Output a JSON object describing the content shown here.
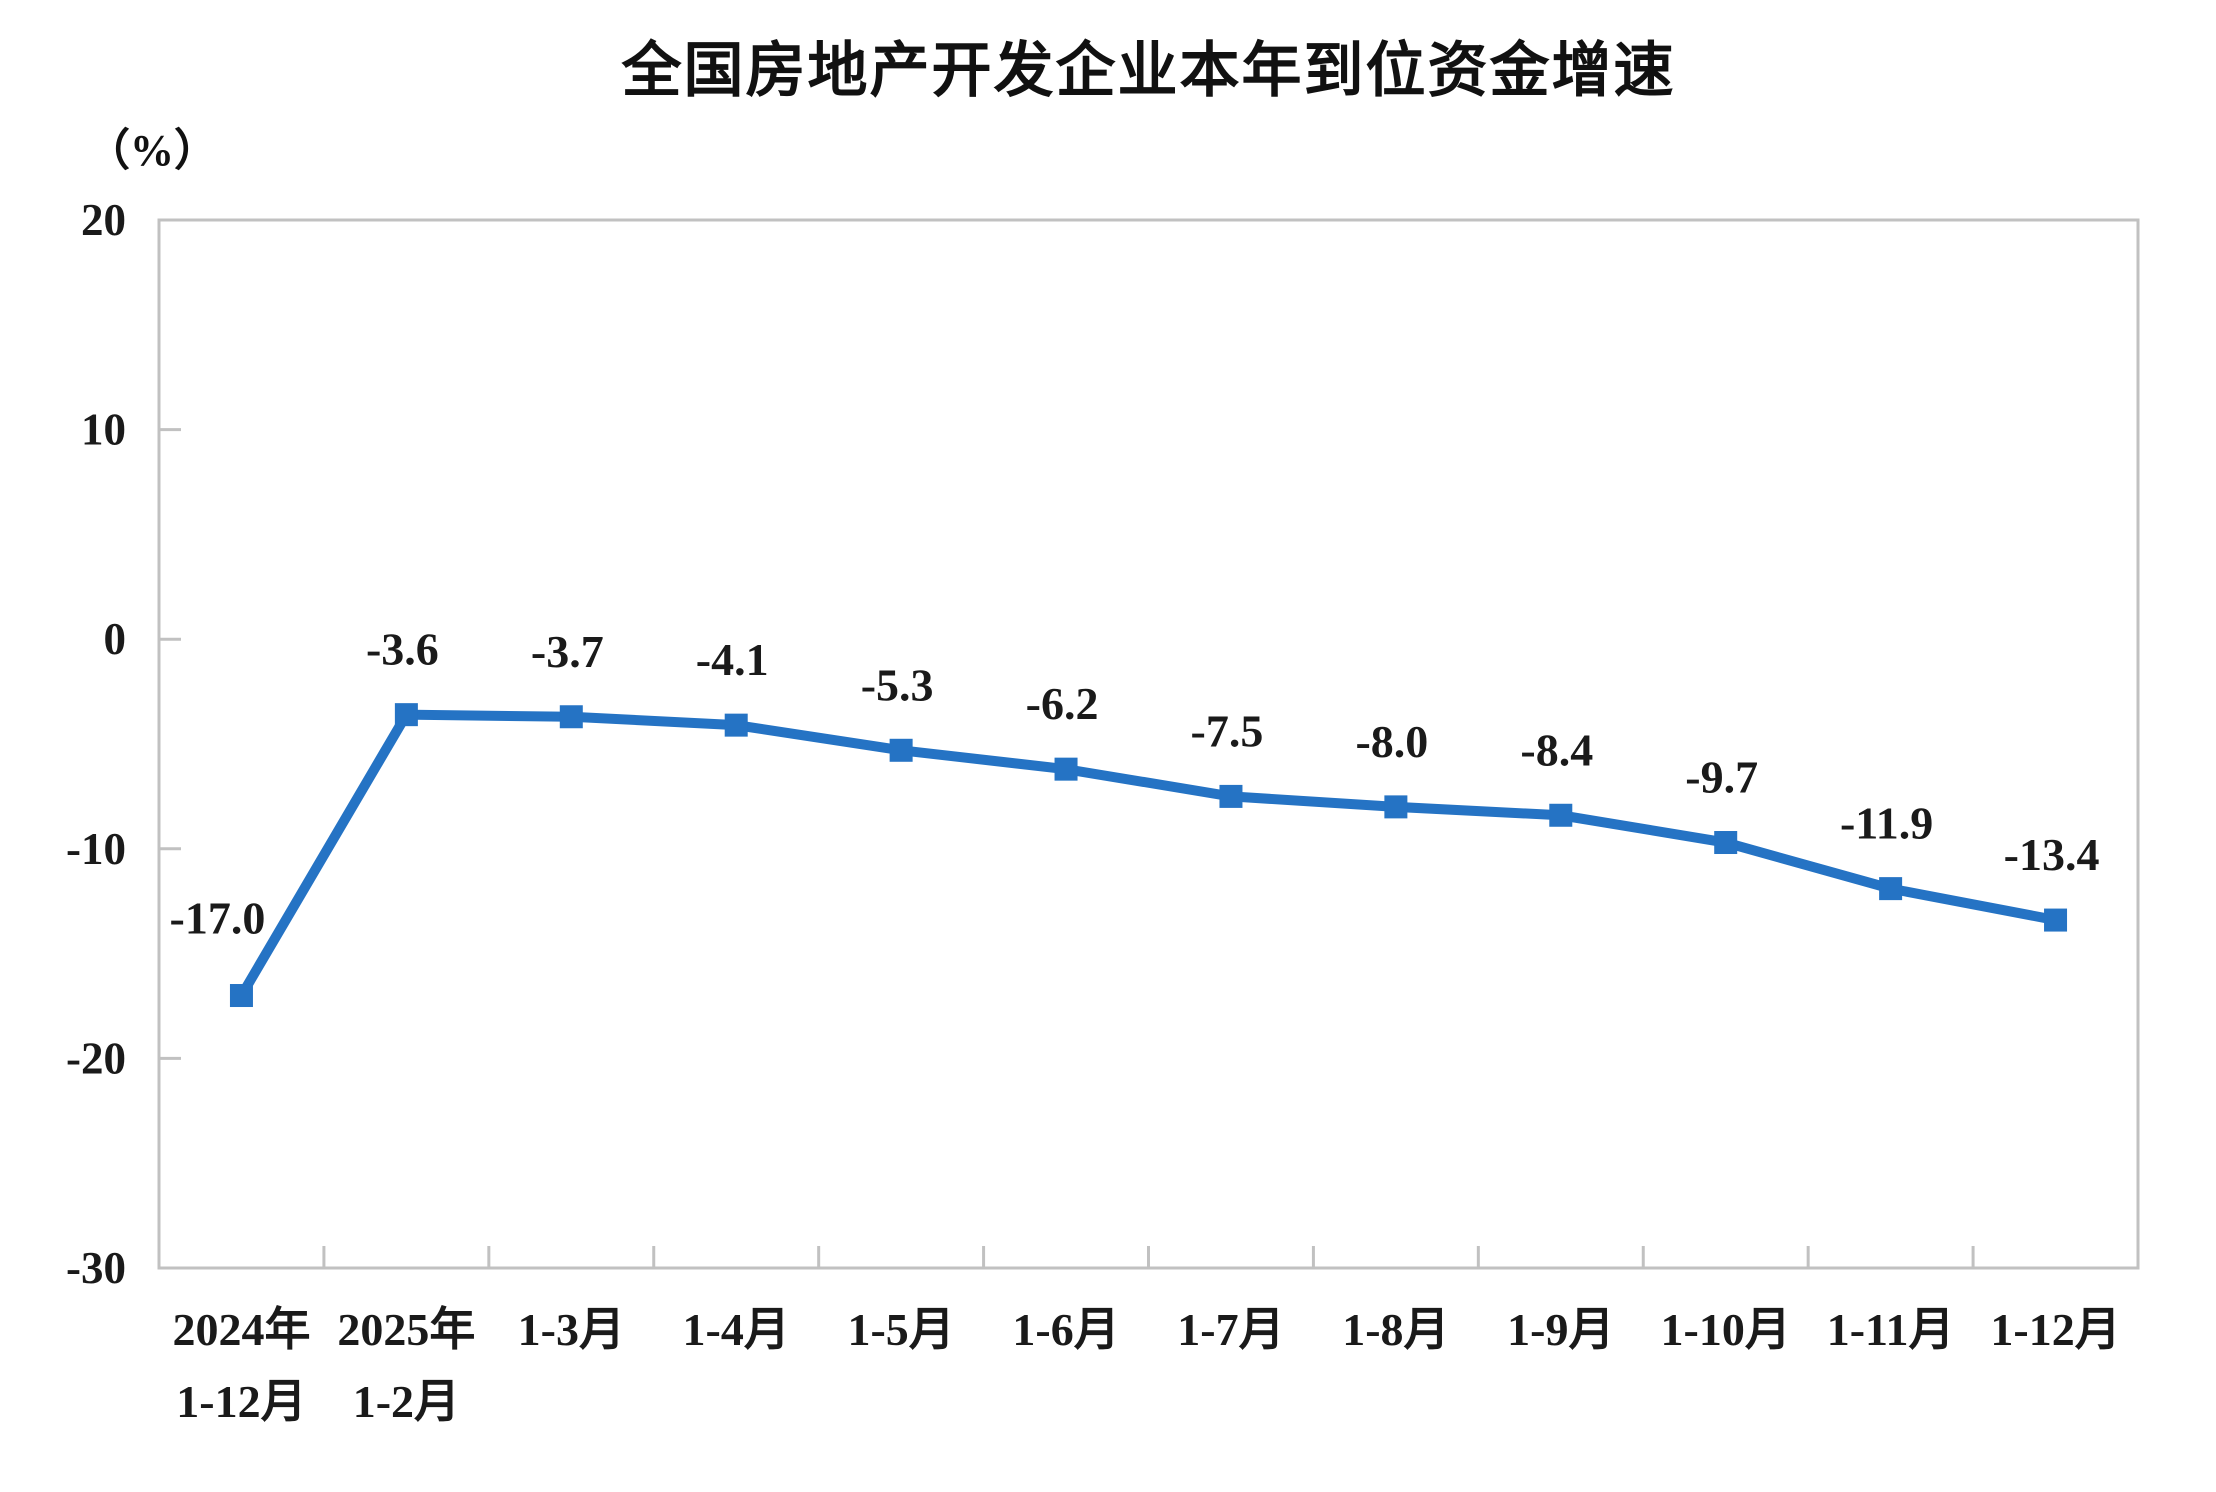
{
  "chart_data": {
    "type": "line",
    "title": "全国房地产开发企业本年到位资金增速",
    "unit_label": "（%）",
    "categories": [
      [
        "2024年",
        "1-12月"
      ],
      [
        "2025年",
        "1-2月"
      ],
      [
        "1-3月"
      ],
      [
        "1-4月"
      ],
      [
        "1-5月"
      ],
      [
        "1-6月"
      ],
      [
        "1-7月"
      ],
      [
        "1-8月"
      ],
      [
        "1-9月"
      ],
      [
        "1-10月"
      ],
      [
        "1-11月"
      ],
      [
        "1-12月"
      ]
    ],
    "values": [
      -17.0,
      -3.6,
      -3.7,
      -4.1,
      -5.3,
      -6.2,
      -7.5,
      -8.0,
      -8.4,
      -9.7,
      -11.9,
      -13.4
    ],
    "data_labels": [
      "-17.0",
      "-3.6",
      "-3.7",
      "-4.1",
      "-5.3",
      "-6.2",
      "-7.5",
      "-8.0",
      "-8.4",
      "-9.7",
      "-11.9",
      "-13.4"
    ],
    "ylim": [
      -30,
      20
    ],
    "yticks": [
      20,
      10,
      0,
      -10,
      -20,
      -30
    ],
    "grid": false,
    "legend": null,
    "marker": "square",
    "colors": {
      "line": "#2573C4",
      "marker": "#2573C4",
      "axis": "#C1C1C1",
      "text": "#1a1a1a"
    }
  }
}
